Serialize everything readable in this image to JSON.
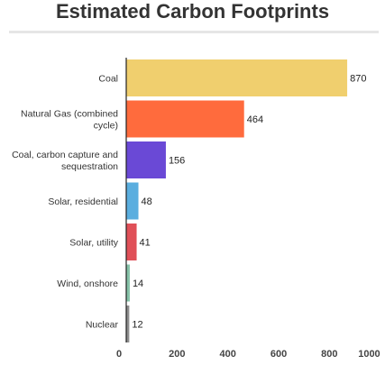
{
  "chart_data": {
    "type": "bar",
    "orientation": "horizontal",
    "title": "Estimated Carbon Footprints",
    "categories": [
      "Coal",
      "Natural Gas (combined cycle)",
      "Coal, carbon capture and sequestration",
      "Solar, residential",
      "Solar, utility",
      "Wind, onshore",
      "Nuclear"
    ],
    "values": [
      870,
      464,
      156,
      48,
      41,
      14,
      12
    ],
    "colors": [
      "#f0cf6e",
      "#ff6b3d",
      "#6a49d6",
      "#5aaedf",
      "#e05058",
      "#86c2a8",
      "#8e8e8e"
    ],
    "xlim": [
      0,
      1000
    ],
    "xticks": [
      "0",
      "200",
      "400",
      "600",
      "800",
      "1000"
    ],
    "grid": false,
    "legend": "none"
  }
}
